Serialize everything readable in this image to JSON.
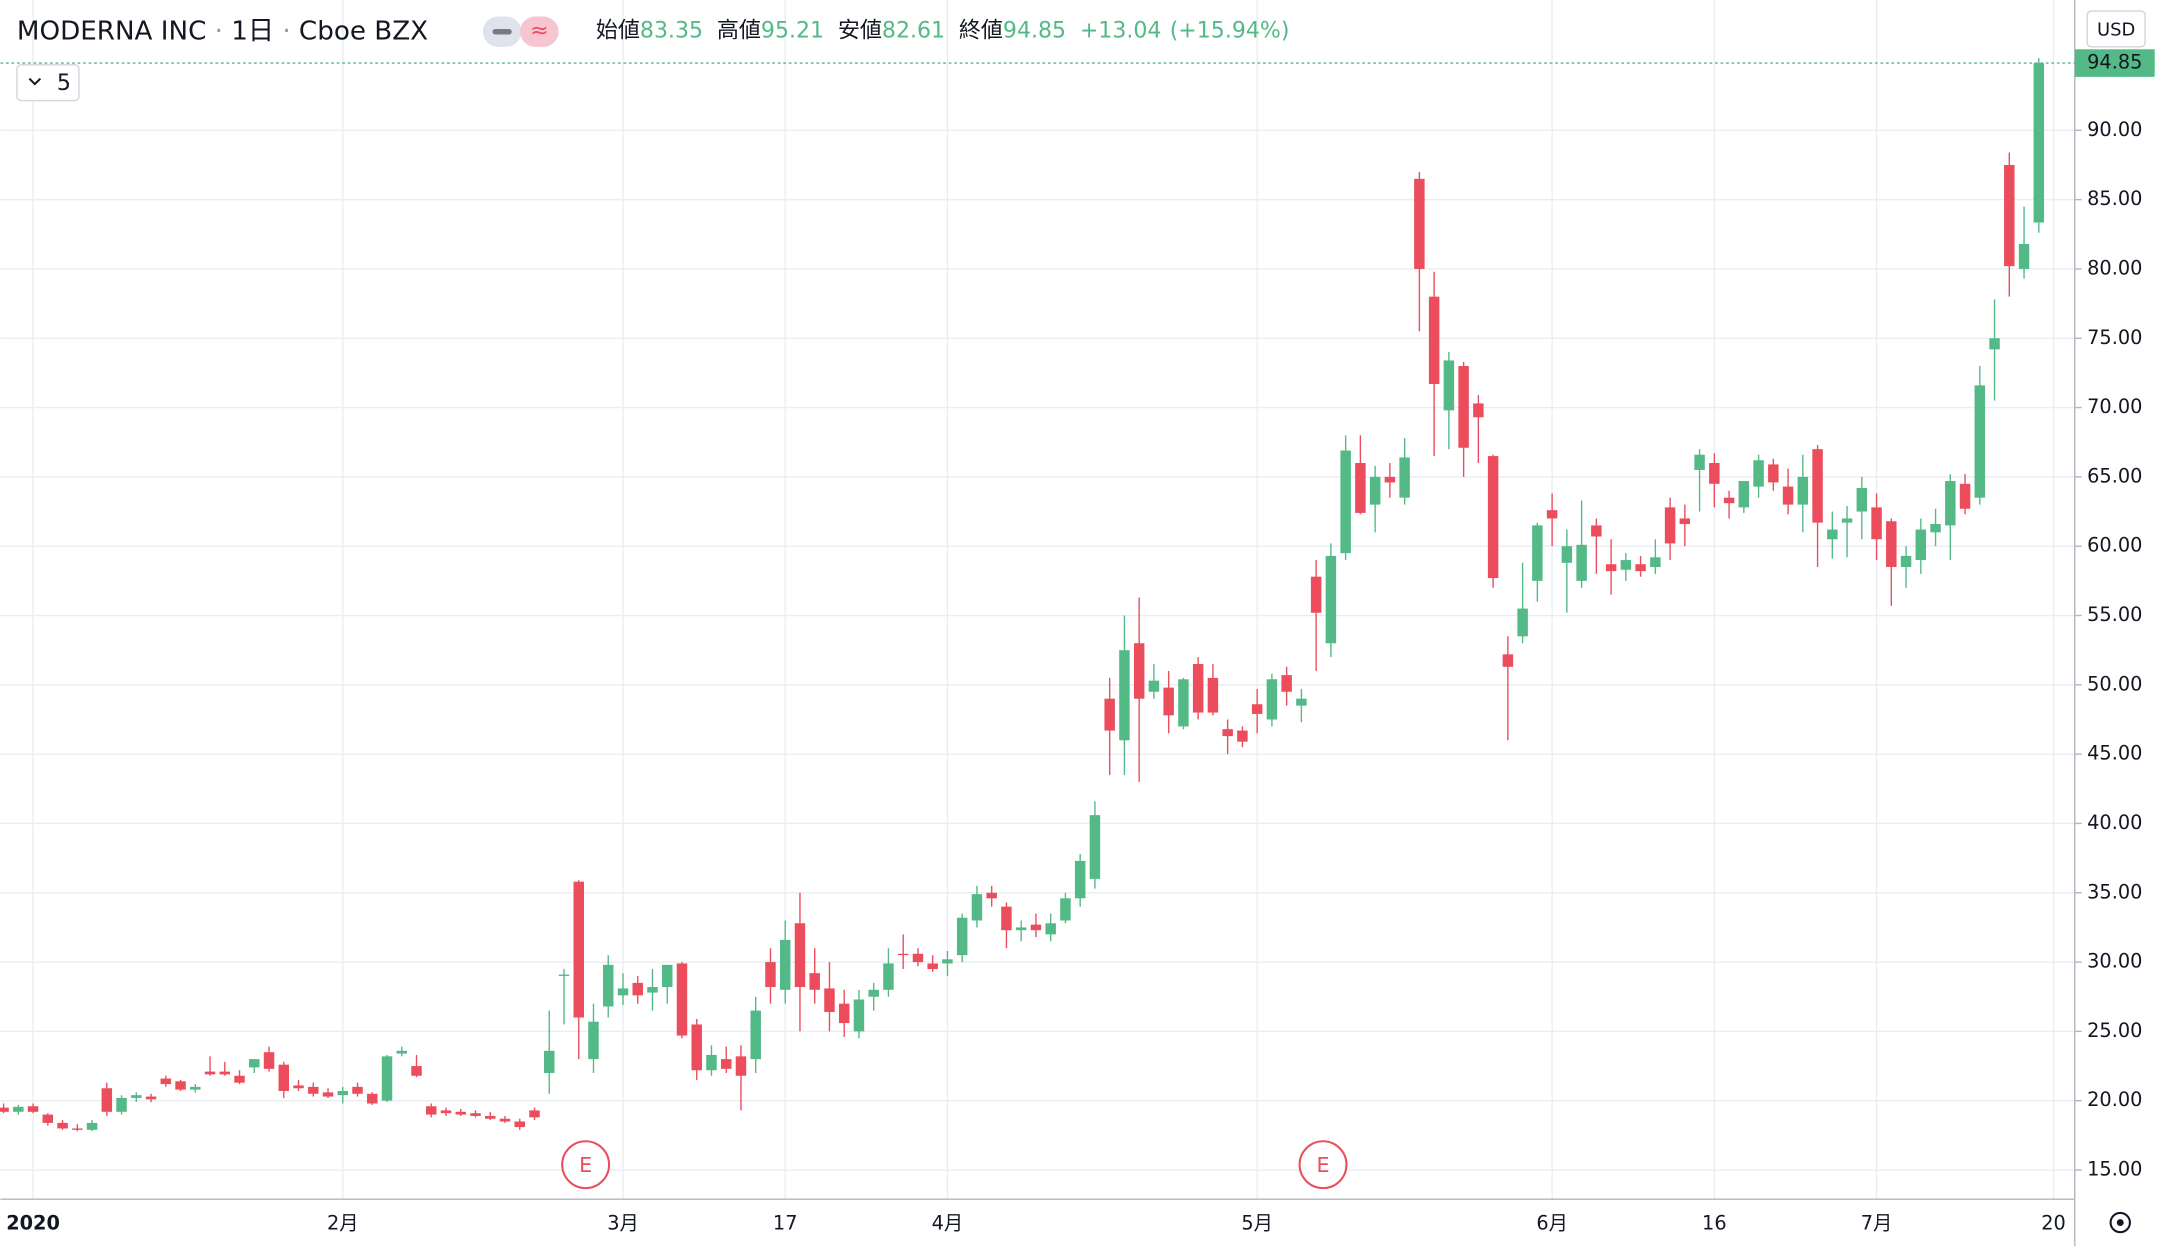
{
  "chart_data": {
    "type": "candlestick",
    "title": "MODERNA INC",
    "interval": "1日",
    "exchange": "Cboe BZX",
    "ohlc_labels": {
      "open": "始値",
      "high": "高値",
      "low": "安値",
      "close": "終値"
    },
    "change": "+13.04",
    "change_pct": "(+15.94%)",
    "currency": "USD",
    "indicator_count": 5,
    "annotations": [
      "E",
      "E"
    ],
    "up_color": "#53b987",
    "down_color": "#eb4d5c",
    "grid": true,
    "ylim": [
      12.9,
      99.4
    ],
    "yticks": [
      {
        "value": 15,
        "label": "15.00"
      },
      {
        "value": 20,
        "label": "20.00"
      },
      {
        "value": 25,
        "label": "25.00"
      },
      {
        "value": 30,
        "label": "30.00"
      },
      {
        "value": 35,
        "label": "35.00"
      },
      {
        "value": 40,
        "label": "40.00"
      },
      {
        "value": 45,
        "label": "45.00"
      },
      {
        "value": 50,
        "label": "50.00"
      },
      {
        "value": 55,
        "label": "55.00"
      },
      {
        "value": 60,
        "label": "60.00"
      },
      {
        "value": 65,
        "label": "65.00"
      },
      {
        "value": 70,
        "label": "70.00"
      },
      {
        "value": 75,
        "label": "75.00"
      },
      {
        "value": 80,
        "label": "80.00"
      },
      {
        "value": 85,
        "label": "85.00"
      },
      {
        "value": 90,
        "label": "90.00"
      }
    ],
    "categories": [
      null,
      null,
      "2020",
      null,
      null,
      null,
      null,
      null,
      null,
      null,
      null,
      null,
      null,
      null,
      null,
      null,
      null,
      null,
      null,
      null,
      null,
      null,
      null,
      "2月",
      null,
      null,
      null,
      null,
      null,
      null,
      null,
      null,
      null,
      null,
      null,
      null,
      null,
      null,
      null,
      null,
      null,
      null,
      "3月",
      null,
      null,
      null,
      null,
      null,
      null,
      null,
      null,
      null,
      null,
      "17",
      null,
      null,
      null,
      null,
      null,
      null,
      null,
      null,
      null,
      null,
      "4月",
      null,
      null,
      null,
      null,
      null,
      null,
      null,
      null,
      null,
      null,
      null,
      null,
      null,
      null,
      null,
      null,
      null,
      null,
      null,
      null,
      "5月",
      null,
      null,
      null,
      null,
      null,
      null,
      null,
      null,
      null,
      null,
      null,
      null,
      null,
      null,
      null,
      null,
      null,
      null,
      null,
      "6月",
      null,
      null,
      null,
      null,
      null,
      null,
      null,
      null,
      null,
      null,
      "16",
      null,
      null,
      null,
      null,
      null,
      null,
      null,
      null,
      null,
      null,
      "7月",
      null,
      null,
      null,
      null,
      null,
      null,
      null,
      null,
      null,
      null,
      null,
      "20"
    ],
    "open": [
      19.5,
      19.2,
      19.6,
      19.0,
      18.4,
      18.0,
      17.9,
      20.9,
      19.2,
      20.2,
      20.3,
      21.6,
      21.4,
      20.8,
      22.1,
      22.1,
      21.8,
      22.4,
      23.5,
      22.6,
      21.1,
      21.0,
      20.6,
      20.4,
      21.0,
      20.5,
      20.0,
      23.4,
      22.5,
      19.6,
      19.3,
      19.2,
      19.1,
      18.9,
      18.7,
      18.5,
      19.3,
      22.0,
      29.0,
      35.8,
      23.0,
      26.8,
      27.6,
      28.5,
      27.8,
      28.2,
      29.9,
      25.5,
      22.2,
      23.0,
      23.2,
      23.0,
      30.0,
      28.0,
      32.8,
      29.2,
      28.1,
      27.0,
      25.0,
      27.5,
      28.0,
      30.6,
      30.6,
      29.9,
      29.9,
      30.5,
      33.0,
      35.0,
      34.0,
      32.3,
      32.7,
      32.0,
      33.0,
      34.6,
      36.0,
      49.0,
      46.0,
      53.0,
      49.5,
      49.8,
      47.0,
      51.5,
      50.5,
      46.8,
      46.7,
      48.6,
      47.5,
      50.7,
      48.5,
      57.8,
      53.0,
      59.5,
      66.0,
      63.0,
      65.0,
      63.5,
      86.5,
      78.0,
      69.8,
      73.0,
      70.3,
      66.5,
      52.2,
      53.5,
      57.5,
      62.6,
      58.8,
      57.5,
      61.5,
      58.7,
      58.3,
      58.7,
      58.5,
      62.8,
      62.0,
      65.5,
      66.0,
      63.5,
      62.8,
      64.3,
      65.9,
      64.3,
      63.0,
      67.0,
      60.5,
      61.7,
      62.5,
      62.8,
      61.8,
      58.5,
      59.0,
      61.0,
      61.5,
      64.5,
      63.5,
      74.2,
      87.5,
      80.0,
      83.35,
      null
    ],
    "high": [
      19.8,
      19.7,
      19.8,
      19.1,
      18.6,
      18.3,
      18.6,
      21.3,
      20.4,
      20.6,
      20.5,
      21.8,
      21.5,
      21.2,
      23.2,
      22.8,
      22.2,
      23.0,
      23.9,
      22.8,
      21.5,
      21.3,
      20.9,
      21.0,
      21.3,
      20.6,
      23.3,
      23.9,
      23.3,
      19.8,
      19.5,
      19.4,
      19.3,
      19.2,
      18.9,
      18.7,
      19.5,
      26.5,
      29.5,
      35.9,
      27.0,
      30.5,
      29.2,
      29.0,
      29.5,
      29.8,
      30.0,
      25.9,
      24.0,
      23.9,
      24.0,
      27.5,
      31.0,
      33.0,
      35.0,
      31.0,
      30.0,
      28.0,
      28.0,
      28.5,
      31.0,
      32.0,
      31.0,
      30.5,
      30.8,
      33.5,
      35.5,
      35.5,
      34.3,
      33.0,
      33.5,
      33.5,
      35.0,
      37.8,
      41.6,
      50.5,
      55.0,
      56.3,
      51.5,
      51.0,
      50.5,
      52.0,
      51.5,
      47.5,
      47.0,
      49.7,
      50.8,
      51.3,
      49.7,
      59.0,
      60.2,
      68.0,
      68.0,
      65.8,
      66.0,
      67.8,
      87.0,
      79.8,
      74.0,
      73.3,
      70.9,
      66.6,
      53.5,
      58.8,
      61.7,
      63.8,
      61.2,
      63.3,
      62.0,
      60.5,
      59.5,
      59.3,
      60.5,
      63.5,
      63.0,
      67.0,
      66.7,
      64.0,
      64.6,
      66.6,
      66.3,
      65.6,
      66.6,
      67.3,
      62.5,
      62.9,
      65.0,
      63.8,
      62.0,
      60.0,
      62.0,
      62.7,
      65.2,
      65.2,
      73.0,
      77.8,
      88.4,
      84.5,
      95.21,
      null
    ],
    "low": [
      19.1,
      19.0,
      19.1,
      18.2,
      17.9,
      17.8,
      17.8,
      18.9,
      19.0,
      19.9,
      19.9,
      21.0,
      20.7,
      20.6,
      21.8,
      21.8,
      21.2,
      22.0,
      22.1,
      20.2,
      20.7,
      20.3,
      20.2,
      19.8,
      20.3,
      19.7,
      19.9,
      23.2,
      21.7,
      18.8,
      18.9,
      18.9,
      18.8,
      18.6,
      18.4,
      17.9,
      18.6,
      20.5,
      25.5,
      23.0,
      22.0,
      26.0,
      26.9,
      27.0,
      26.5,
      27.0,
      24.5,
      21.5,
      21.8,
      22.0,
      19.3,
      22.0,
      27.0,
      27.0,
      25.0,
      27.0,
      25.0,
      24.6,
      24.5,
      26.5,
      27.5,
      29.5,
      29.7,
      29.3,
      29.0,
      30.0,
      32.5,
      34.0,
      31.0,
      31.5,
      31.8,
      31.5,
      32.8,
      34.0,
      35.3,
      43.5,
      43.5,
      43.0,
      49.0,
      46.5,
      46.8,
      47.5,
      47.8,
      45.0,
      45.5,
      46.5,
      47.0,
      48.5,
      47.3,
      51.0,
      52.0,
      59.0,
      62.3,
      61.0,
      63.5,
      63.0,
      75.5,
      66.5,
      67.0,
      65.0,
      66.0,
      57.0,
      46.0,
      53.0,
      56.0,
      60.0,
      55.2,
      57.0,
      58.0,
      56.5,
      57.5,
      57.8,
      58.0,
      59.0,
      60.0,
      62.5,
      62.8,
      62.0,
      62.4,
      63.5,
      64.0,
      62.3,
      61.0,
      58.5,
      59.1,
      59.2,
      60.5,
      59.0,
      55.7,
      57.0,
      58.0,
      60.0,
      59.0,
      62.3,
      63.0,
      70.5,
      78.0,
      79.3,
      82.61,
      null
    ],
    "close": [
      19.2,
      19.56,
      19.2,
      18.4,
      18.0,
      17.9,
      18.4,
      19.2,
      20.2,
      20.4,
      20.1,
      21.2,
      20.8,
      21.0,
      21.9,
      21.9,
      21.3,
      23.0,
      22.3,
      20.7,
      20.9,
      20.5,
      20.3,
      20.7,
      20.5,
      19.8,
      23.2,
      23.6,
      21.8,
      19.0,
      19.1,
      19.0,
      18.9,
      18.7,
      18.5,
      18.1,
      18.8,
      23.6,
      29.1,
      26.0,
      25.7,
      29.8,
      28.1,
      27.6,
      28.2,
      29.8,
      24.7,
      22.2,
      23.3,
      22.3,
      21.8,
      26.5,
      28.2,
      31.6,
      28.2,
      28.0,
      26.4,
      25.6,
      27.3,
      28.0,
      29.9,
      30.5,
      30.0,
      29.5,
      30.2,
      33.2,
      34.9,
      34.6,
      32.3,
      32.5,
      32.3,
      32.8,
      34.6,
      37.3,
      40.6,
      46.7,
      52.5,
      49.0,
      50.3,
      47.8,
      50.4,
      48.0,
      48.0,
      46.3,
      45.9,
      47.9,
      50.4,
      49.5,
      49.0,
      55.2,
      59.3,
      66.9,
      62.4,
      65.0,
      64.6,
      66.4,
      80.0,
      71.7,
      73.4,
      67.1,
      69.3,
      57.7,
      51.3,
      55.5,
      61.5,
      62.0,
      60.0,
      60.1,
      60.7,
      58.2,
      59.0,
      58.2,
      59.2,
      60.2,
      61.6,
      66.6,
      64.5,
      63.1,
      64.7,
      66.2,
      64.6,
      63.0,
      65.0,
      61.7,
      61.2,
      62.0,
      64.2,
      60.5,
      58.5,
      59.3,
      61.2,
      61.6,
      64.7,
      62.7,
      71.6,
      75.0,
      80.2,
      81.8,
      94.85,
      null
    ]
  }
}
